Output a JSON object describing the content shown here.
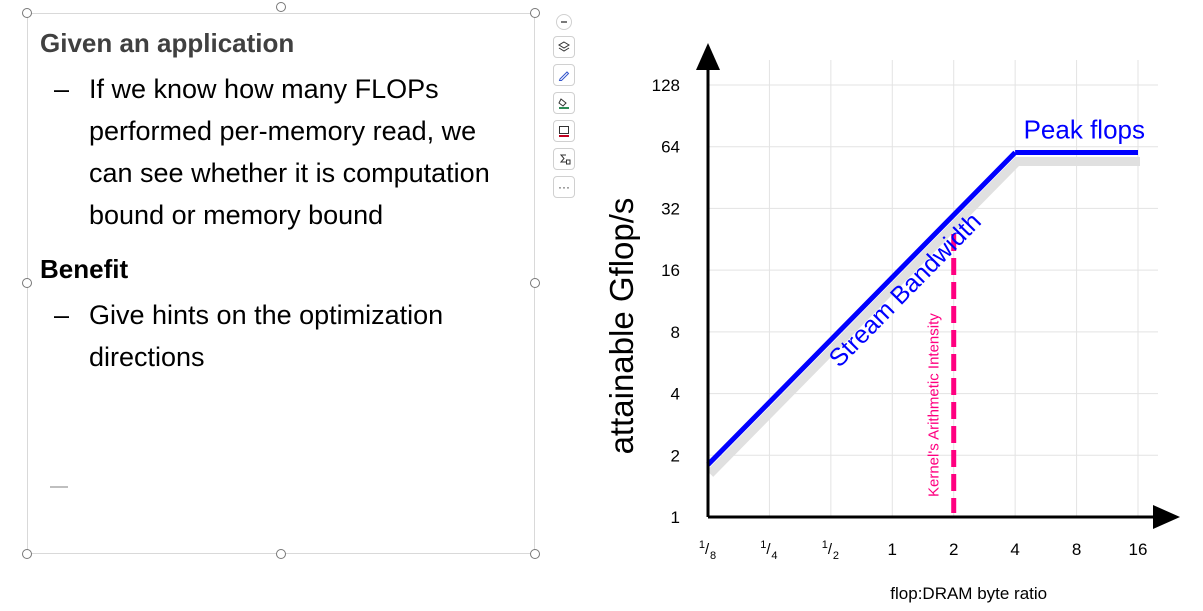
{
  "slide": {
    "heading1": "Given an application",
    "bullet1": "If we know how many FLOPs performed per-memory read, we can see whether it is computation bound or memory bound",
    "heading2": "Benefit",
    "bullet2": "Give hints on the optimization directions",
    "dash": "–"
  },
  "toolbar": {
    "items": [
      "collapse-icon",
      "layers-icon",
      "pen-icon",
      "fill-icon",
      "border-icon",
      "formula-icon",
      "more-icon"
    ],
    "more_label": "···"
  },
  "chart_data": {
    "type": "line",
    "xlabel": "flop:DRAM byte ratio",
    "ylabel": "attainable Gflop/s",
    "x_scale": "log2",
    "y_scale": "log2",
    "xlim": [
      0.125,
      16
    ],
    "ylim": [
      1,
      128
    ],
    "x_ticks": [
      {
        "value": 0.125,
        "num": "1",
        "den": "8"
      },
      {
        "value": 0.25,
        "num": "1",
        "den": "4"
      },
      {
        "value": 0.5,
        "num": "1",
        "den": "2"
      },
      {
        "value": 1,
        "label": "1"
      },
      {
        "value": 2,
        "label": "2"
      },
      {
        "value": 4,
        "label": "4"
      },
      {
        "value": 8,
        "label": "8"
      },
      {
        "value": 16,
        "label": "16"
      }
    ],
    "y_ticks": [
      1,
      2,
      4,
      8,
      16,
      32,
      64,
      128
    ],
    "grid": true,
    "series": [
      {
        "name": "Stream Bandwidth",
        "color": "#0000ff",
        "x": [
          0.125,
          4
        ],
        "y": [
          1.8,
          60
        ]
      },
      {
        "name": "Peak flops",
        "color": "#0000ff",
        "x": [
          4,
          16
        ],
        "y": [
          60,
          60
        ]
      }
    ],
    "kernel_line": {
      "label": "Kernel's Arithmetic Intensity",
      "x": 2,
      "y_top": 24,
      "color": "#ff0080"
    },
    "labels": {
      "bandwidth": "Stream Bandwidth",
      "peak": "Peak flops"
    },
    "shadow_color": "#e0e0e0",
    "line_color": "#0000ff"
  }
}
